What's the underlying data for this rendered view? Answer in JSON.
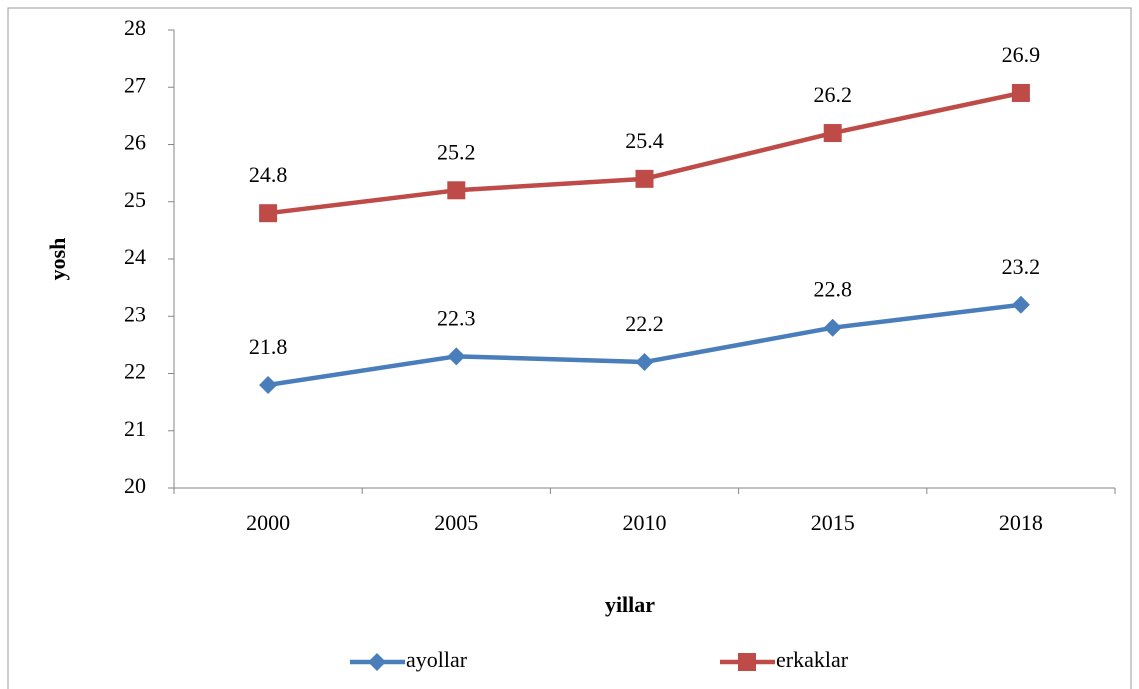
{
  "chart_data": {
    "type": "line",
    "x_label": "yillar",
    "y_label": "yosh",
    "categories": [
      "2000",
      "2005",
      "2010",
      "2015",
      "2018"
    ],
    "series": [
      {
        "name": "ayollar",
        "color": "#4a7ebb",
        "marker": "diamond",
        "values": [
          21.8,
          22.3,
          22.2,
          22.8,
          23.2
        ]
      },
      {
        "name": "erkaklar",
        "color": "#be4b48",
        "marker": "square",
        "values": [
          24.8,
          25.2,
          25.4,
          26.2,
          26.9
        ]
      }
    ],
    "ylim": [
      20,
      28
    ],
    "yticks": [
      20,
      21,
      22,
      23,
      24,
      25,
      26,
      27,
      28
    ],
    "legend": "bottom",
    "grid": false
  }
}
